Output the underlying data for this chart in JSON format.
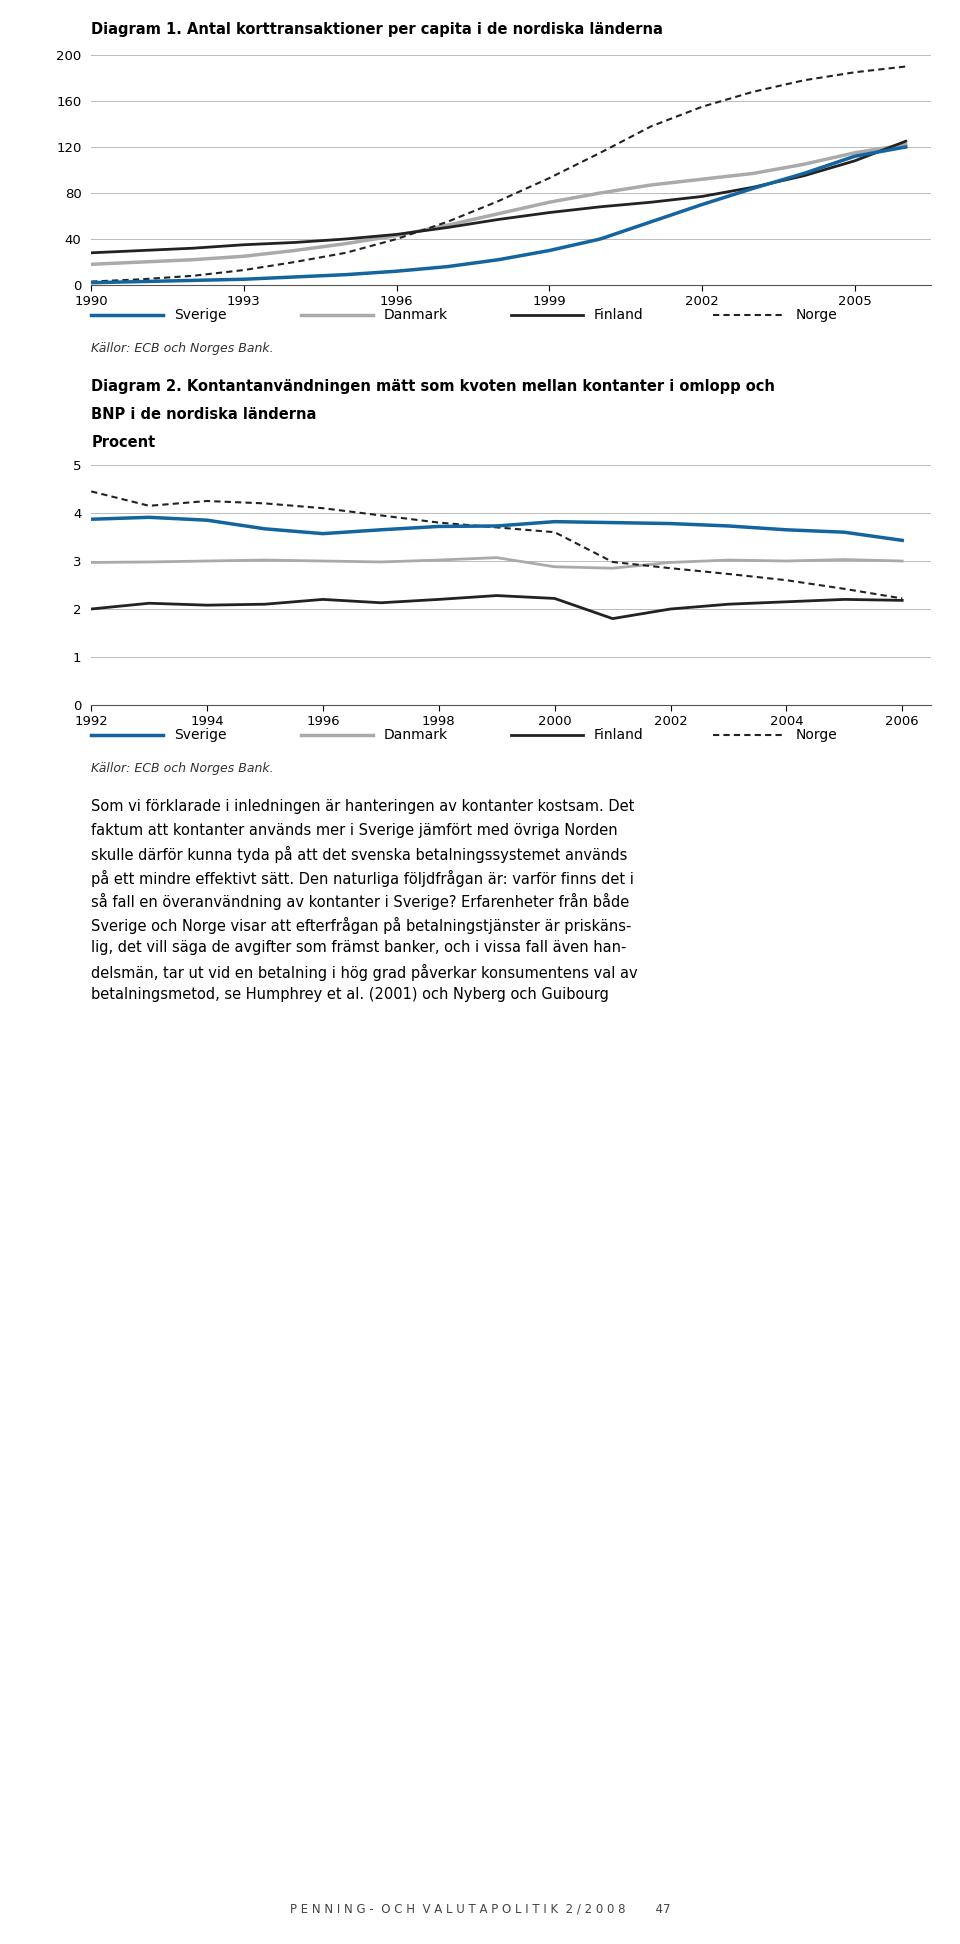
{
  "diagram1": {
    "title": "Diagram 1. Antal korttransaktioner per capita i de nordiska länderna",
    "years": [
      1990,
      1991,
      1992,
      1993,
      1994,
      1995,
      1996,
      1997,
      1998,
      1999,
      2000,
      2001,
      2002,
      2003,
      2004,
      2005,
      2006
    ],
    "sverige": [
      2,
      3,
      4,
      5,
      7,
      9,
      12,
      16,
      22,
      30,
      40,
      55,
      70,
      84,
      97,
      112,
      120
    ],
    "danmark": [
      18,
      20,
      22,
      25,
      30,
      36,
      43,
      52,
      62,
      72,
      80,
      87,
      92,
      97,
      105,
      115,
      122
    ],
    "finland": [
      28,
      30,
      32,
      35,
      37,
      40,
      44,
      50,
      57,
      63,
      68,
      72,
      77,
      85,
      95,
      108,
      125
    ],
    "norge": [
      3,
      5,
      8,
      13,
      20,
      28,
      40,
      55,
      73,
      93,
      115,
      138,
      155,
      168,
      178,
      185,
      190
    ],
    "ylim": [
      0,
      200
    ],
    "yticks": [
      0,
      40,
      80,
      120,
      160,
      200
    ],
    "xticks": [
      1990,
      1993,
      1996,
      1999,
      2002,
      2005
    ],
    "xlim": [
      1990,
      2006.5
    ],
    "source": "Källor: ECB och Norges Bank.",
    "colors": {
      "sverige": "#1464a0",
      "danmark": "#aaaaaa",
      "finland": "#222222",
      "norge": "#222222"
    }
  },
  "diagram2": {
    "title1": "Diagram 2. Kontantanvändningen mätt som kvoten mellan kontanter i omlopp och",
    "title2": "BNP i de nordiska länderna",
    "title3": "Procent",
    "years": [
      1992,
      1993,
      1994,
      1995,
      1996,
      1997,
      1998,
      1999,
      2000,
      2001,
      2002,
      2003,
      2004,
      2005,
      2006
    ],
    "sverige": [
      3.87,
      3.91,
      3.85,
      3.67,
      3.57,
      3.65,
      3.72,
      3.73,
      3.82,
      3.8,
      3.78,
      3.73,
      3.65,
      3.6,
      3.43
    ],
    "danmark": [
      2.97,
      2.98,
      3.0,
      3.02,
      3.0,
      2.98,
      3.02,
      3.07,
      2.88,
      2.85,
      2.97,
      3.02,
      3.0,
      3.03,
      3.0
    ],
    "finland": [
      2.0,
      2.12,
      2.08,
      2.1,
      2.2,
      2.13,
      2.2,
      2.28,
      2.22,
      1.8,
      2.0,
      2.1,
      2.15,
      2.2,
      2.18
    ],
    "norge": [
      4.45,
      4.15,
      4.25,
      4.2,
      4.1,
      3.95,
      3.8,
      3.7,
      3.6,
      2.98,
      2.85,
      2.73,
      2.6,
      2.42,
      2.22
    ],
    "ylim": [
      0,
      5
    ],
    "yticks": [
      0,
      1,
      2,
      3,
      4,
      5
    ],
    "xticks": [
      1992,
      1994,
      1996,
      1998,
      2000,
      2002,
      2004,
      2006
    ],
    "xlim": [
      1992,
      2006.5
    ],
    "source": "Källor: ECB och Norges Bank.",
    "colors": {
      "sverige": "#1464a0",
      "danmark": "#aaaaaa",
      "finland": "#222222",
      "norge": "#222222"
    }
  },
  "legend_labels": [
    "Sverige",
    "Danmark",
    "Finland",
    "Norge"
  ],
  "body_text": [
    "Som vi förklarade i inledningen är hanteringen av kontanter kostsam. Det",
    "faktum att kontanter används mer i Sverige jämfört med övriga Norden",
    "skulle därför kunna tyda på att det svenska betalningssystemet används",
    "på ett mindre effektivt sätt. Den naturliga följdfrågan är: varför finns det i",
    "så fall en överanvändning av kontanter i Sverige? Erfarenheter från både",
    "Sverige och Norge visar att efterfrågan på betalningstjänster är priskäns-",
    "lig, det vill säga de avgifter som främst banker, och i vissa fall även han-",
    "delsmän, tar ut vid en betalning i hög grad påverkar konsumentens val av",
    "betalningsmetod, se Humphrey et al. (2001) och Nyberg och Guibourg"
  ],
  "footer_text": "P E N N I N G -  O C H  V A L U T A P O L I T I K  2 / 2 0 0 8        47",
  "bg": "#ffffff",
  "gray_line": "#bbbbbb",
  "spine_color": "#555555",
  "title_fs": 10.5,
  "tick_fs": 9.5,
  "legend_fs": 10,
  "source_fs": 9,
  "body_fs": 10.5
}
